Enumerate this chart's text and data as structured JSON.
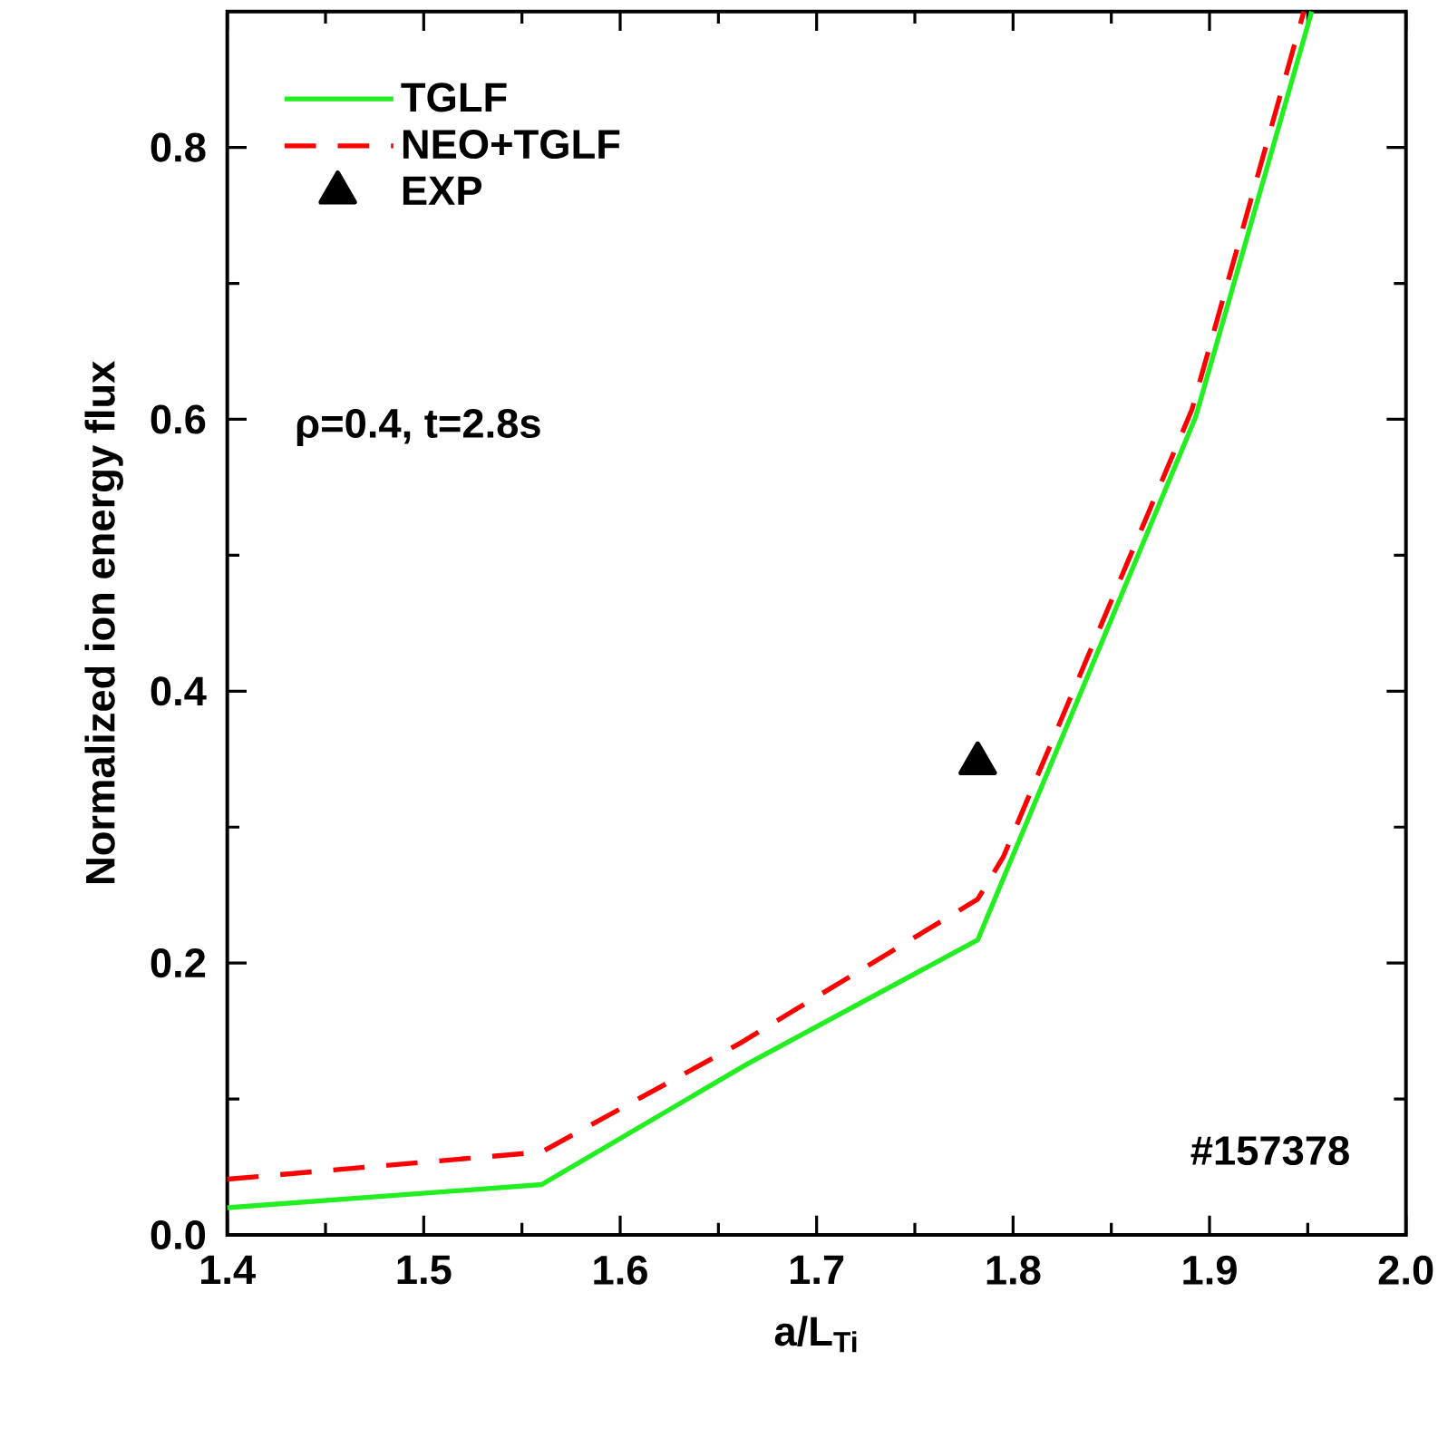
{
  "chart_data": {
    "type": "line",
    "xlabel": "a/L$_{Ti}$",
    "ylabel": "Normalized ion energy flux",
    "xlim": [
      1.4,
      2.0
    ],
    "ylim": [
      0,
      0.9
    ],
    "xticks": [
      1.4,
      1.5,
      1.6,
      1.7,
      1.8,
      1.9,
      {
        "value": 2.0,
        "label": "2.0"
      }
    ],
    "yticks": [
      {
        "value": 0,
        "label": "0.0"
      },
      0.2,
      0.4,
      0.6,
      0.8
    ],
    "legend": "top left",
    "grid": false,
    "annotations": [
      "ρ=0.4, t=2.8s",
      "#157378"
    ],
    "series": [
      {
        "name": "TGLF",
        "color": "#22ee22",
        "line_style": "solid",
        "marker": "none",
        "x": [
          1.4,
          1.56,
          1.665,
          1.782,
          1.893,
          1.952
        ],
        "values": [
          0.02,
          0.037,
          0.126,
          0.217,
          0.602,
          0.9
        ]
      },
      {
        "name": "NEO+TGLF",
        "color": "#ff0000",
        "line_style": "dashed",
        "marker": "none",
        "x": [
          1.4,
          1.56,
          1.661,
          1.782,
          1.795,
          1.891,
          1.948
        ],
        "values": [
          0.041,
          0.061,
          0.141,
          0.247,
          0.278,
          0.607,
          0.9
        ]
      },
      {
        "name": "EXP",
        "type": "scatter",
        "color": "#000000",
        "marker": "triangle",
        "x": [
          1.782
        ],
        "values": [
          0.347
        ]
      }
    ]
  }
}
